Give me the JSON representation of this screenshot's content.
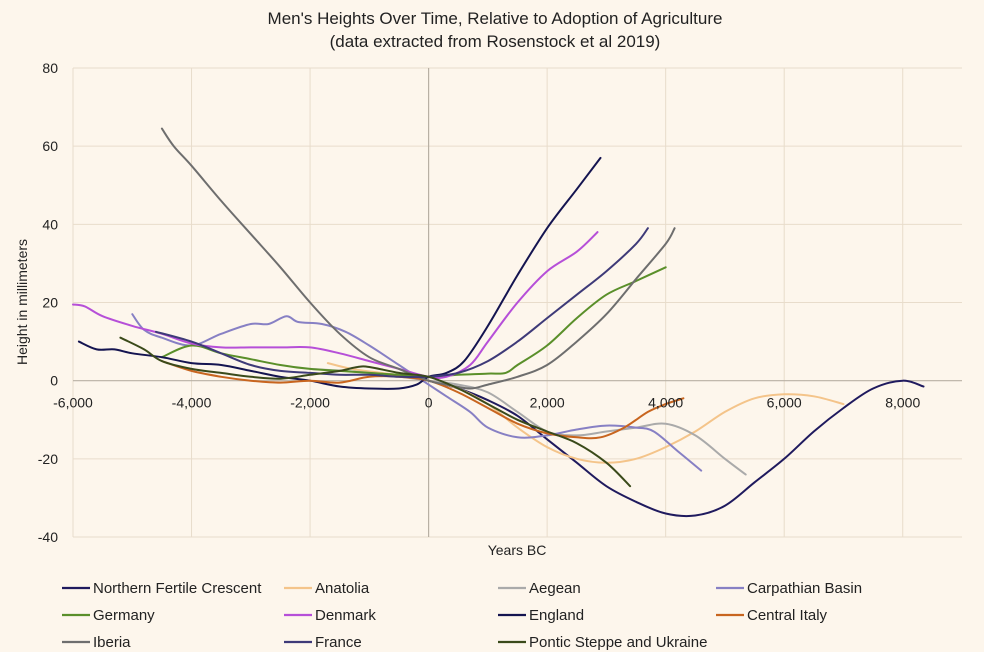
{
  "chart_data": {
    "type": "line",
    "title": "Men's Heights Over Time, Relative to Adoption of Agriculture",
    "subtitle": "(data extracted from Rosenstock et al 2019)",
    "xlabel": "Years BC",
    "ylabel": "Height in millimeters",
    "xlim": [
      -6000,
      9000
    ],
    "ylim": [
      -40,
      80
    ],
    "x_ticks": [
      -6000,
      -4000,
      -2000,
      0,
      2000,
      4000,
      6000,
      8000
    ],
    "x_tick_labels": [
      "-6,000",
      "-4,000",
      "-2,000",
      "0",
      "2,000",
      "4,000",
      "6,000",
      "8,000"
    ],
    "y_ticks": [
      -40,
      -20,
      0,
      20,
      40,
      60,
      80
    ],
    "y_tick_labels": [
      "-40",
      "-20",
      "0",
      "20",
      "40",
      "60",
      "80"
    ],
    "grid": true,
    "legend_position": "bottom",
    "series": [
      {
        "name": "Northern Fertile Crescent",
        "color": "#1f1a5e",
        "points": [
          [
            0,
            0
          ],
          [
            500,
            -2
          ],
          [
            1000,
            -5
          ],
          [
            1500,
            -9
          ],
          [
            2000,
            -15
          ],
          [
            2500,
            -21
          ],
          [
            3000,
            -27
          ],
          [
            3500,
            -31
          ],
          [
            4000,
            -34
          ],
          [
            4500,
            -34.5
          ],
          [
            5000,
            -32
          ],
          [
            5500,
            -26
          ],
          [
            6000,
            -20
          ],
          [
            6500,
            -13
          ],
          [
            7000,
            -7
          ],
          [
            7500,
            -2
          ],
          [
            8000,
            0
          ],
          [
            8350,
            -1.5
          ]
        ]
      },
      {
        "name": "Anatolia",
        "color": "#f4c48a",
        "points": [
          [
            -1700,
            4.5
          ],
          [
            -1300,
            3
          ],
          [
            -800,
            2
          ],
          [
            -300,
            1
          ],
          [
            0,
            0
          ],
          [
            500,
            -2
          ],
          [
            1000,
            -6
          ],
          [
            1500,
            -12
          ],
          [
            2000,
            -17
          ],
          [
            2500,
            -20
          ],
          [
            3000,
            -21
          ],
          [
            3500,
            -20
          ],
          [
            4000,
            -17
          ],
          [
            4500,
            -13
          ],
          [
            5000,
            -8
          ],
          [
            5500,
            -4.5
          ],
          [
            6000,
            -3.5
          ],
          [
            6500,
            -4
          ],
          [
            7000,
            -6
          ]
        ]
      },
      {
        "name": "Aegean",
        "color": "#aaaaaa",
        "points": [
          [
            -2000,
            3
          ],
          [
            -1000,
            2
          ],
          [
            0,
            0
          ],
          [
            500,
            -1
          ],
          [
            1000,
            -3
          ],
          [
            1500,
            -8
          ],
          [
            2000,
            -13
          ],
          [
            2500,
            -14
          ],
          [
            3000,
            -13
          ],
          [
            3500,
            -12
          ],
          [
            4000,
            -11
          ],
          [
            4500,
            -14
          ],
          [
            5000,
            -20
          ],
          [
            5350,
            -24
          ]
        ]
      },
      {
        "name": "Carpathian Basin",
        "color": "#8780c4",
        "points": [
          [
            -5000,
            17
          ],
          [
            -4800,
            13
          ],
          [
            -4500,
            11
          ],
          [
            -4000,
            9
          ],
          [
            -3500,
            12
          ],
          [
            -3000,
            14.5
          ],
          [
            -2700,
            14.5
          ],
          [
            -2400,
            16.5
          ],
          [
            -2200,
            15
          ],
          [
            -1800,
            14.5
          ],
          [
            -1400,
            12.5
          ],
          [
            -1000,
            9
          ],
          [
            -500,
            4
          ],
          [
            0,
            -1
          ],
          [
            300,
            -4
          ],
          [
            700,
            -8
          ],
          [
            1000,
            -12
          ],
          [
            1500,
            -14.5
          ],
          [
            2000,
            -14
          ],
          [
            2500,
            -12.5
          ],
          [
            3000,
            -11.5
          ],
          [
            3500,
            -12
          ],
          [
            3800,
            -13
          ],
          [
            4200,
            -18
          ],
          [
            4600,
            -23
          ]
        ]
      },
      {
        "name": "Germany",
        "color": "#5a8f2a",
        "points": [
          [
            -4500,
            6
          ],
          [
            -4000,
            9
          ],
          [
            -3500,
            7
          ],
          [
            -3000,
            5.5
          ],
          [
            -2500,
            4
          ],
          [
            -2000,
            3
          ],
          [
            -1500,
            2.5
          ],
          [
            -1000,
            2
          ],
          [
            -500,
            1.5
          ],
          [
            0,
            1
          ],
          [
            500,
            1.5
          ],
          [
            1000,
            1.8
          ],
          [
            1300,
            2
          ],
          [
            1500,
            4
          ],
          [
            2000,
            9
          ],
          [
            2500,
            16
          ],
          [
            3000,
            22
          ],
          [
            3500,
            25.5
          ],
          [
            4000,
            29
          ]
        ]
      },
      {
        "name": "Denmark",
        "color": "#b64fd8",
        "points": [
          [
            -6000,
            19.5
          ],
          [
            -5800,
            19
          ],
          [
            -5500,
            16.5
          ],
          [
            -5000,
            14
          ],
          [
            -4500,
            12
          ],
          [
            -4000,
            9.5
          ],
          [
            -3500,
            8.5
          ],
          [
            -3000,
            8.5
          ],
          [
            -2500,
            8.5
          ],
          [
            -2000,
            8.5
          ],
          [
            -1500,
            7
          ],
          [
            -1000,
            5
          ],
          [
            -500,
            3
          ],
          [
            0,
            1
          ],
          [
            300,
            1
          ],
          [
            700,
            4
          ],
          [
            1000,
            10
          ],
          [
            1500,
            20
          ],
          [
            2000,
            28
          ],
          [
            2500,
            33
          ],
          [
            2850,
            38
          ]
        ]
      },
      {
        "name": "England",
        "color": "#141450",
        "points": [
          [
            -5900,
            10
          ],
          [
            -5600,
            8
          ],
          [
            -5300,
            8
          ],
          [
            -5000,
            7
          ],
          [
            -4500,
            6
          ],
          [
            -4000,
            4.5
          ],
          [
            -3500,
            4
          ],
          [
            -3000,
            2.5
          ],
          [
            -2500,
            1
          ],
          [
            -2000,
            0
          ],
          [
            -1500,
            -1.5
          ],
          [
            -1000,
            -2
          ],
          [
            -500,
            -2
          ],
          [
            -200,
            -1
          ],
          [
            0,
            1
          ],
          [
            300,
            2
          ],
          [
            600,
            5
          ],
          [
            1000,
            14
          ],
          [
            1500,
            27
          ],
          [
            2000,
            39
          ],
          [
            2500,
            49
          ],
          [
            2900,
            57
          ]
        ]
      },
      {
        "name": "Central Italy",
        "color": "#c8651f",
        "points": [
          [
            -4500,
            5
          ],
          [
            -4000,
            2.5
          ],
          [
            -3500,
            1
          ],
          [
            -3000,
            0
          ],
          [
            -2500,
            -0.5
          ],
          [
            -2000,
            0
          ],
          [
            -1500,
            -0.5
          ],
          [
            -1000,
            1
          ],
          [
            -500,
            1
          ],
          [
            0,
            0
          ],
          [
            500,
            -3
          ],
          [
            1000,
            -7
          ],
          [
            1500,
            -11
          ],
          [
            2000,
            -13.5
          ],
          [
            2500,
            -14.5
          ],
          [
            2900,
            -14.5
          ],
          [
            3300,
            -12
          ],
          [
            3700,
            -8
          ],
          [
            4000,
            -6
          ],
          [
            4300,
            -4.5
          ]
        ]
      },
      {
        "name": "Iberia",
        "color": "#6e6e6e",
        "points": [
          [
            -4500,
            64.5
          ],
          [
            -4300,
            60
          ],
          [
            -4000,
            55
          ],
          [
            -3500,
            46
          ],
          [
            -3000,
            37.5
          ],
          [
            -2500,
            29
          ],
          [
            -2000,
            20
          ],
          [
            -1500,
            12
          ],
          [
            -1000,
            6
          ],
          [
            -500,
            3
          ],
          [
            0,
            0
          ],
          [
            300,
            -1
          ],
          [
            700,
            -2
          ],
          [
            1000,
            -1
          ],
          [
            1500,
            1
          ],
          [
            2000,
            4
          ],
          [
            2500,
            10
          ],
          [
            3000,
            17
          ],
          [
            3500,
            26
          ],
          [
            4000,
            35
          ],
          [
            4150,
            39
          ]
        ]
      },
      {
        "name": "France",
        "color": "#3e3a78",
        "points": [
          [
            -4600,
            12.5
          ],
          [
            -4000,
            10
          ],
          [
            -3500,
            7
          ],
          [
            -3000,
            4
          ],
          [
            -2500,
            2.5
          ],
          [
            -2000,
            2
          ],
          [
            -1500,
            1.5
          ],
          [
            -1000,
            1.5
          ],
          [
            -500,
            1
          ],
          [
            0,
            1
          ],
          [
            500,
            2
          ],
          [
            1000,
            5
          ],
          [
            1500,
            10
          ],
          [
            2000,
            16
          ],
          [
            2500,
            22
          ],
          [
            3000,
            28
          ],
          [
            3500,
            35
          ],
          [
            3700,
            39
          ]
        ]
      },
      {
        "name": "Pontic Steppe and Ukraine",
        "color": "#3a4a1a",
        "points": [
          [
            -5200,
            11
          ],
          [
            -4800,
            8
          ],
          [
            -4500,
            5
          ],
          [
            -4000,
            3
          ],
          [
            -3500,
            2
          ],
          [
            -3000,
            1
          ],
          [
            -2500,
            0.5
          ],
          [
            -2000,
            1.5
          ],
          [
            -1500,
            2.5
          ],
          [
            -1200,
            3.5
          ],
          [
            -1000,
            3.5
          ],
          [
            -500,
            2
          ],
          [
            0,
            1
          ],
          [
            500,
            -2
          ],
          [
            1000,
            -6
          ],
          [
            1500,
            -10
          ],
          [
            2000,
            -13
          ],
          [
            2500,
            -16
          ],
          [
            3000,
            -21
          ],
          [
            3400,
            -27
          ]
        ]
      }
    ]
  }
}
